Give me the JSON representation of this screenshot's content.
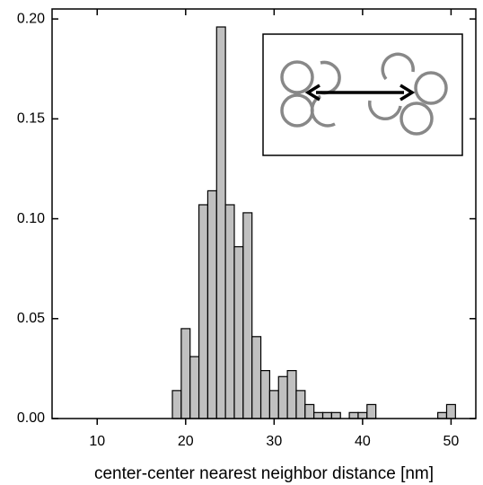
{
  "chart_data": {
    "type": "histogram",
    "x_label": "center-center nearest neighbor distance [nm]",
    "bins": [
      18.5,
      19.5,
      20.5,
      21.5,
      22.5,
      23.5,
      24.5,
      25.5,
      26.5,
      27.5,
      28.5,
      29.5,
      30.5,
      31.5,
      32.5,
      33.5,
      34.5,
      35.5,
      36.5,
      37.5,
      38.5,
      39.5,
      40.5,
      41.5,
      42.5,
      43.5,
      44.5,
      45.5,
      46.5,
      47.5,
      48.5,
      49.5,
      50.5
    ],
    "values": [
      0.014,
      0.045,
      0.031,
      0.107,
      0.114,
      0.196,
      0.107,
      0.086,
      0.103,
      0.041,
      0.024,
      0.014,
      0.021,
      0.024,
      0.014,
      0.007,
      0.003,
      0.003,
      0.003,
      0,
      0.003,
      0.003,
      0.007,
      0,
      0,
      0,
      0,
      0,
      0,
      0,
      0.003,
      0.007
    ],
    "color": "#c0c0c0",
    "xlim": [
      4.9,
      52.8
    ],
    "xticks": [
      10,
      20,
      30,
      40,
      50
    ],
    "ylim": [
      0,
      0.205
    ],
    "yticks": [
      {
        "value": 0,
        "label": "0.00"
      },
      {
        "value": 0.05,
        "label": "0.05"
      },
      {
        "value": 0.1,
        "label": "0.10"
      },
      {
        "value": 0.15,
        "label": "0.15"
      },
      {
        "value": 0.2,
        "label": "0.20"
      }
    ]
  }
}
